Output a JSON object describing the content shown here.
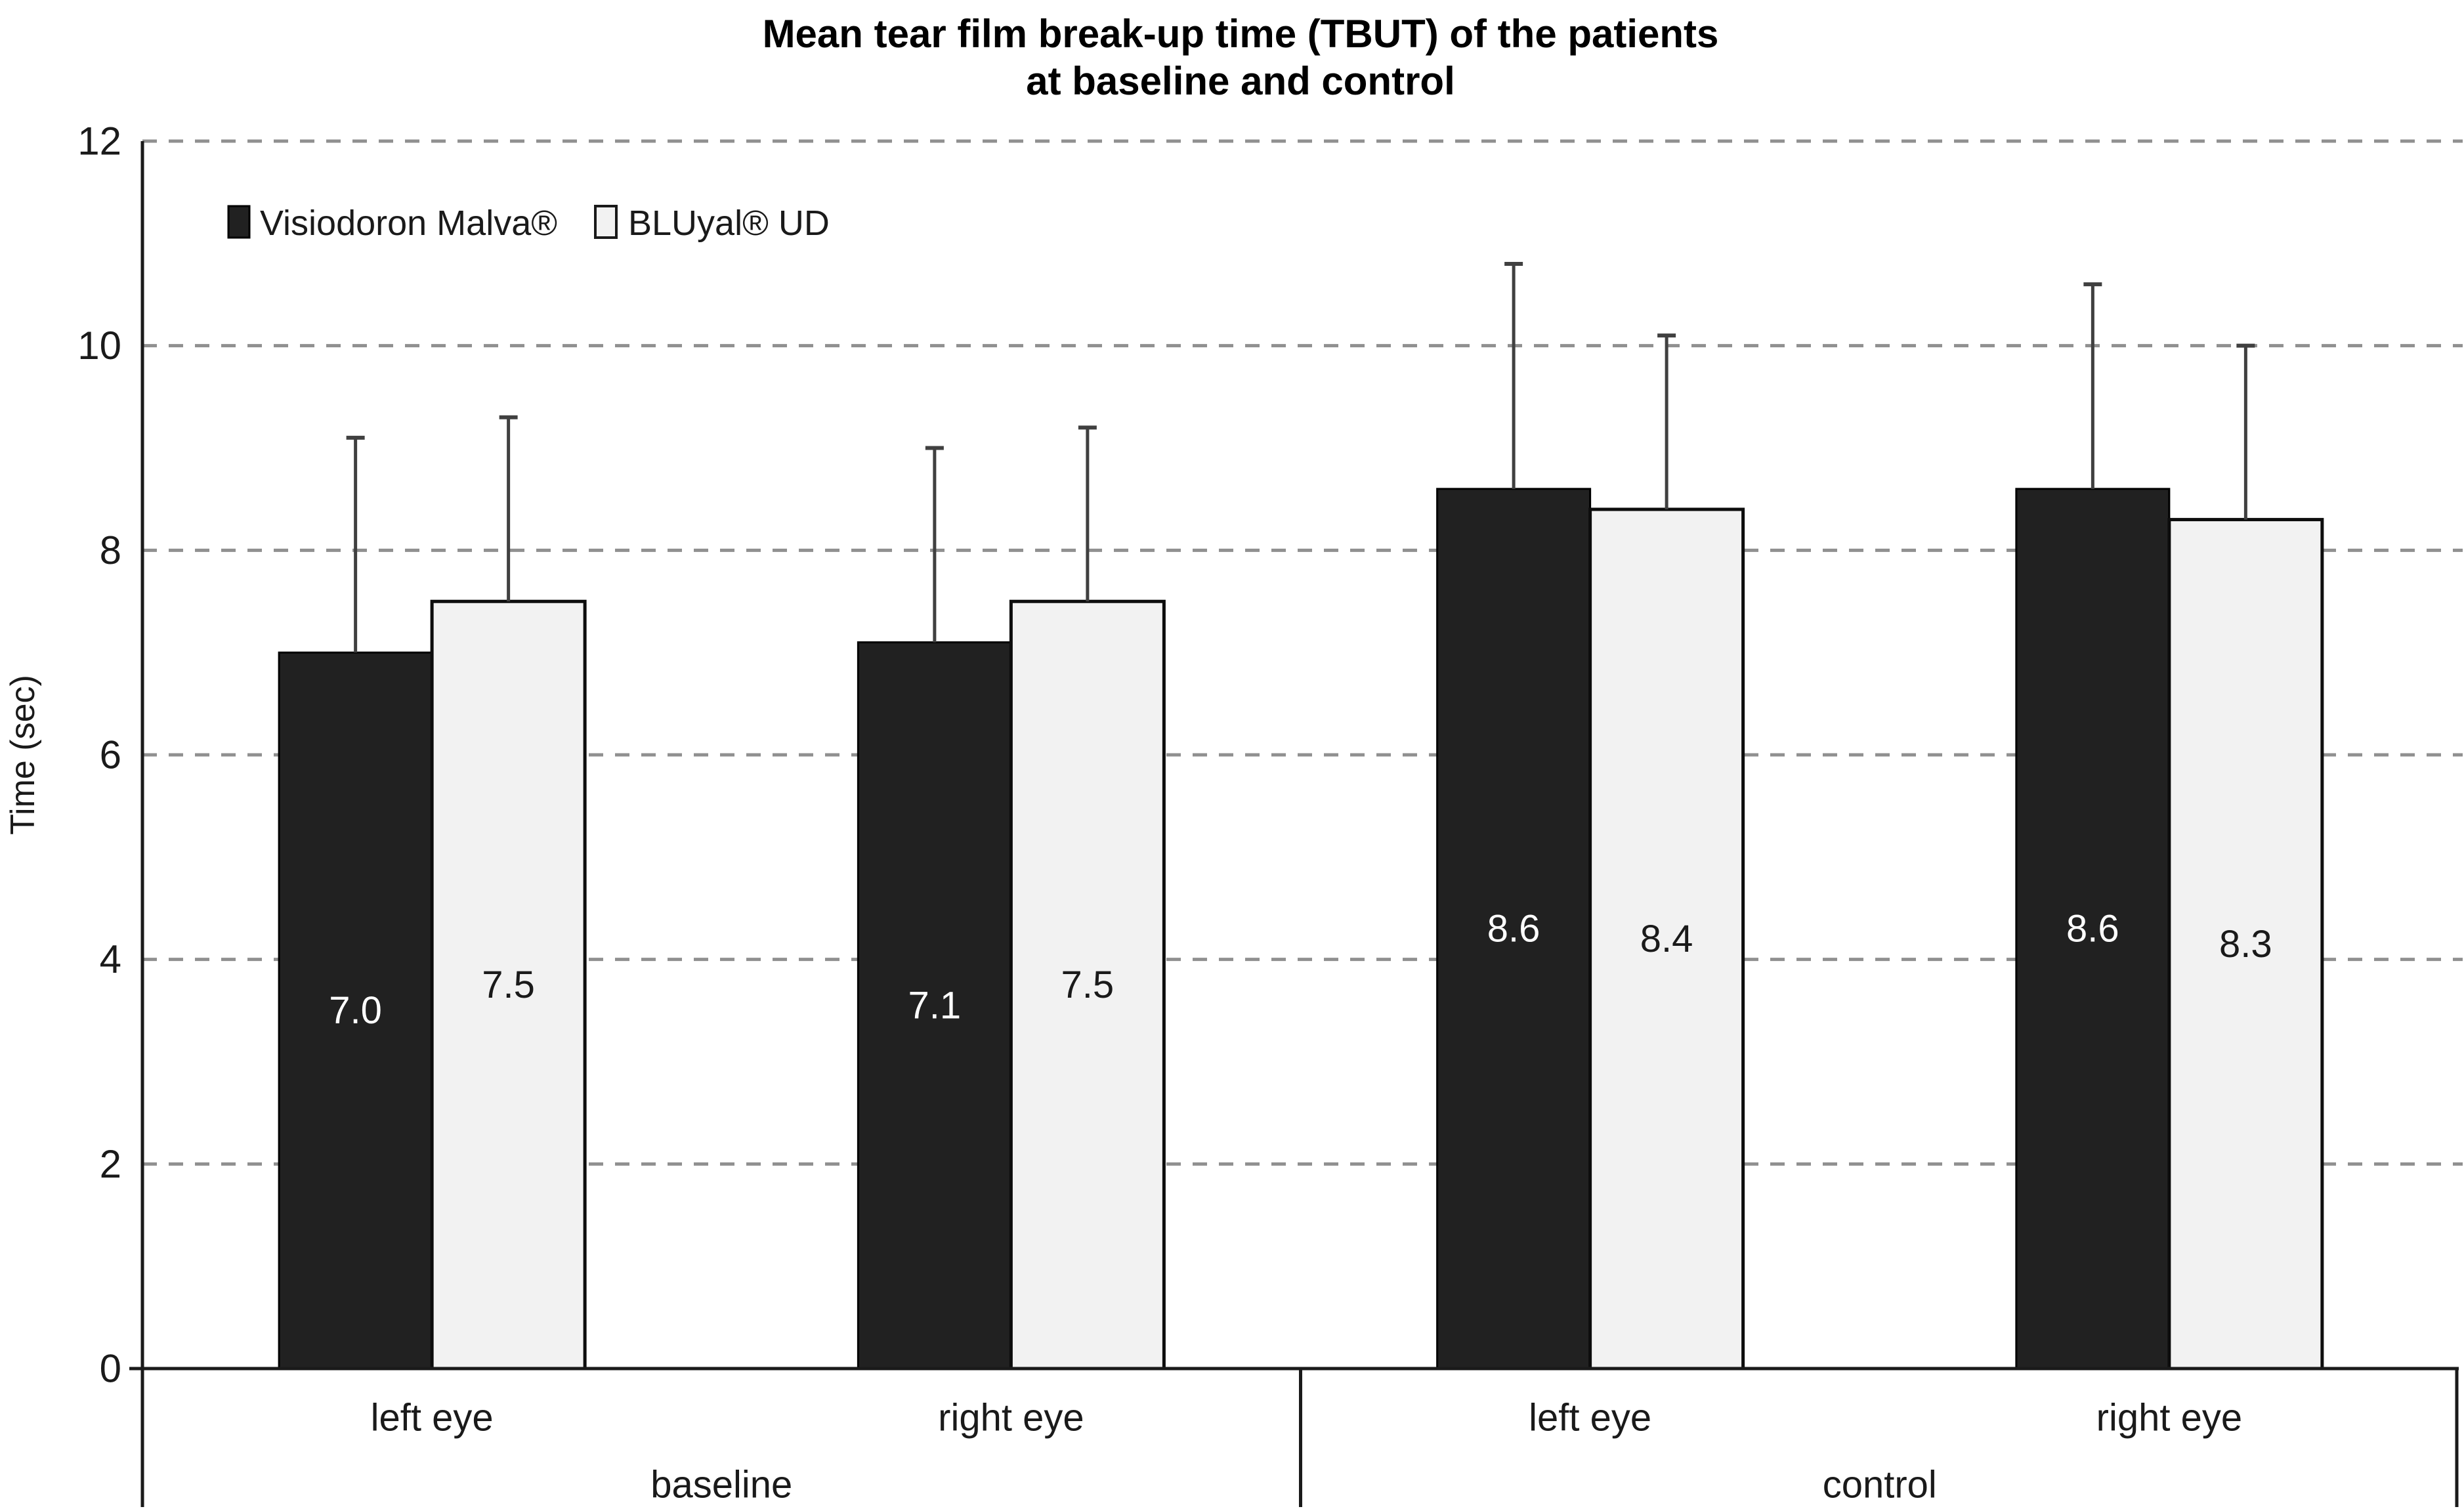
{
  "figure": {
    "background": "#ffffff"
  },
  "chart_data": {
    "type": "bar",
    "title_lines": [
      "Mean tear film break-up time (TBUT) of the patients",
      "at baseline and control"
    ],
    "ylabel": "Time (sec)",
    "ylim": [
      0,
      12
    ],
    "yticks": [
      0,
      2,
      4,
      6,
      8,
      10,
      12
    ],
    "grid": "horizontal-dashed",
    "legend_position": "top-left-inside",
    "categories": [
      "left eye",
      "right eye",
      "left eye",
      "right eye"
    ],
    "group_labels": [
      {
        "label": "baseline",
        "span": [
          0,
          1
        ]
      },
      {
        "label": "control",
        "span": [
          2,
          3
        ]
      }
    ],
    "series": [
      {
        "name": "Visiodoron Malva®",
        "color": "#212121",
        "border_color": "#000000",
        "label_color": "#ffffff",
        "values": [
          7.0,
          7.1,
          8.6,
          8.6
        ],
        "upper_errors": [
          2.1,
          1.9,
          2.2,
          2.0
        ]
      },
      {
        "name": "BLUyal® UD",
        "color": "#f2f2f2",
        "border_color": "#0d0d0d",
        "label_color": "#1a1a1a",
        "values": [
          7.5,
          7.5,
          8.4,
          8.3
        ],
        "upper_errors": [
          1.8,
          1.7,
          1.7,
          1.7
        ]
      }
    ],
    "error_bar_color": "#404040",
    "gridline_color": "#909090",
    "axis_color": "#1a1a1a",
    "value_label_format": "one-decimal"
  }
}
